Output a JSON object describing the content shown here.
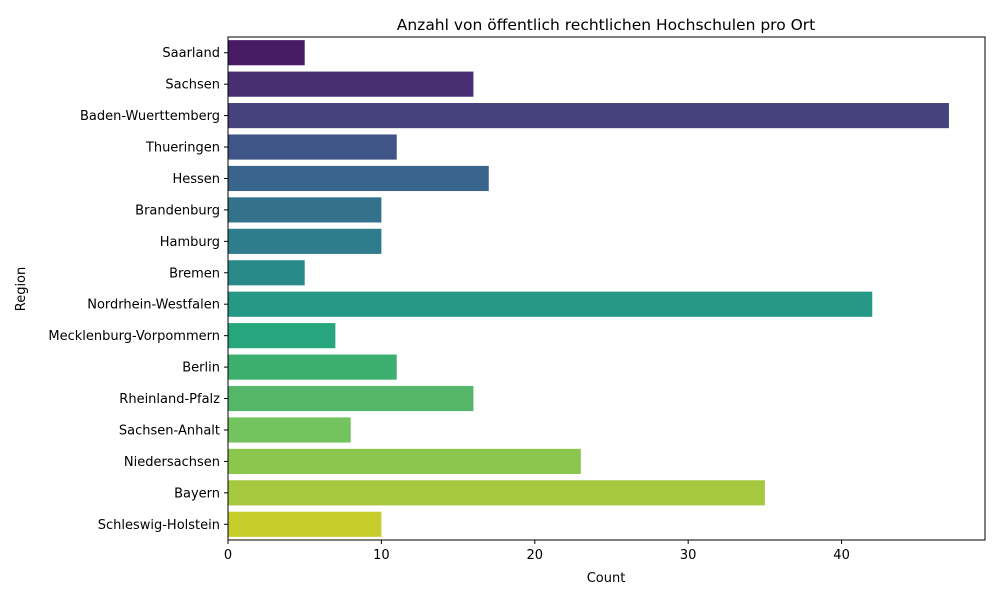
{
  "chart_data": {
    "type": "bar",
    "orientation": "horizontal",
    "title": "Anzahl von öffentlich rechtlichen Hochschulen pro Ort",
    "xlabel": "Count",
    "ylabel": "Region",
    "xlim": [
      0,
      49.35
    ],
    "xticks": [
      0,
      10,
      20,
      30,
      40
    ],
    "grid": false,
    "legend": "none",
    "categories": [
      "Saarland",
      "Sachsen",
      "Baden-Wuerttemberg",
      "Thueringen",
      "Hessen",
      "Brandenburg",
      "Hamburg",
      "Bremen",
      "Nordrhein-Westfalen",
      "Mecklenburg-Vorpommern",
      "Berlin",
      "Rheinland-Pfalz",
      "Sachsen-Anhalt",
      "Niedersachsen",
      "Bayern",
      "Schleswig-Holstein"
    ],
    "values": [
      5,
      16,
      47,
      11,
      17,
      10,
      10,
      5,
      42,
      7,
      11,
      16,
      8,
      23,
      35,
      10
    ],
    "colors": [
      "#471a63",
      "#482f73",
      "#46427d",
      "#3f5487",
      "#39648b",
      "#34728c",
      "#2f7d8c",
      "#2a8989",
      "#259886",
      "#27a57d",
      "#3caf6f",
      "#55b66a",
      "#73c35e",
      "#8bc74d",
      "#a6c83f",
      "#c8cd2e"
    ]
  }
}
